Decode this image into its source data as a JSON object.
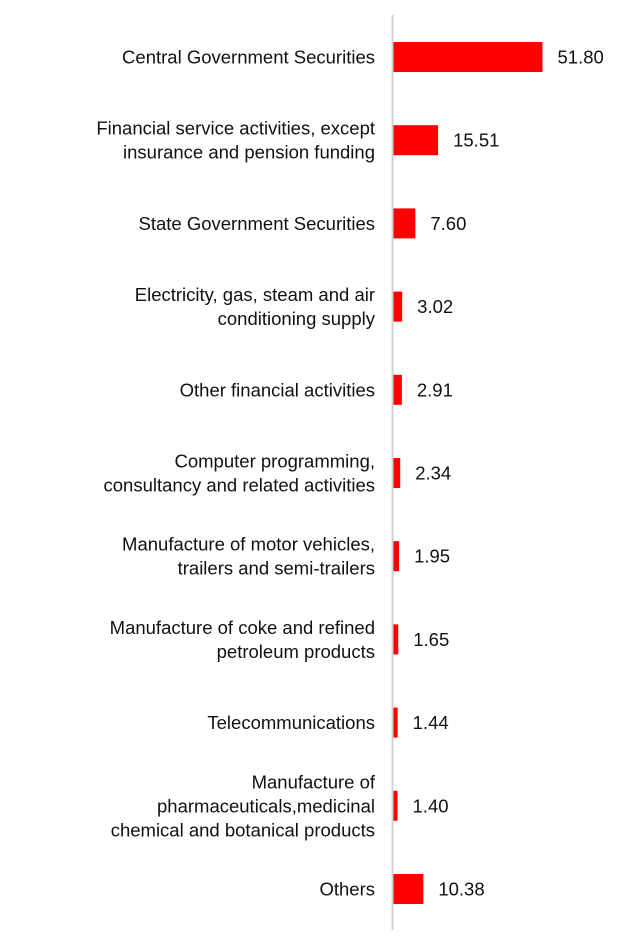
{
  "chart_data": {
    "type": "bar",
    "orientation": "horizontal",
    "categories": [
      [
        "Central Government Securities"
      ],
      [
        "Financial service activities, except",
        "insurance and pension funding"
      ],
      [
        "State Government Securities"
      ],
      [
        "Electricity, gas, steam and air",
        "conditioning supply"
      ],
      [
        "Other financial activities"
      ],
      [
        "Computer programming,",
        "consultancy and related activities"
      ],
      [
        "Manufacture of motor vehicles,",
        "trailers and semi-trailers"
      ],
      [
        "Manufacture of coke and refined",
        "petroleum products"
      ],
      [
        "Telecommunications"
      ],
      [
        "Manufacture of",
        "pharmaceuticals,medicinal",
        "chemical and botanical products"
      ],
      [
        "Others"
      ]
    ],
    "values": [
      51.8,
      15.51,
      7.6,
      3.02,
      2.91,
      2.34,
      1.95,
      1.65,
      1.44,
      1.4,
      10.38
    ],
    "value_labels": [
      "51.80",
      "15.51",
      "7.60",
      "3.02",
      "2.91",
      "2.34",
      "1.95",
      "1.65",
      "1.44",
      "1.40",
      "10.38"
    ],
    "bar_color": "#ff0000",
    "axis_color": "#d0d0d0",
    "grid": false,
    "legend": "none"
  }
}
